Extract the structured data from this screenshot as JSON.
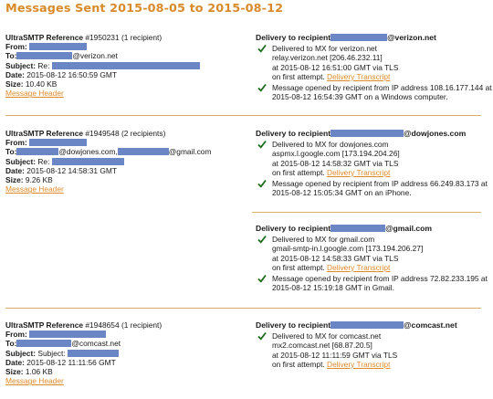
{
  "page_title": "Messages Sent 2015-08-05 to 2015-08-12",
  "labels": {
    "ref_prefix": "UltraSMTP Reference",
    "from": "From:",
    "to": "To:",
    "subject": "Subject:",
    "date": "Date:",
    "size": "Size:",
    "message_header": "Message Header",
    "delivery_to": "Delivery to recipient",
    "delivery_transcript": "Delivery Transcript"
  },
  "messages": [
    {
      "ref_num": "#1950231",
      "recipients": "(1 recipient)",
      "to_suffix": "@verizon.net",
      "subject_prefix": "Re:",
      "date": "2015-08-12 16:50:59 GMT",
      "size": "10.40 KB",
      "deliveries": [
        {
          "domain": "@verizon.net",
          "mx_text": "Delivered to MX for verizon.net",
          "relay": "relay.verizon.net [206.46.232.11]",
          "at_time": "at 2015-08-12 16:51:00 GMT via TLS",
          "first_attempt": "on first attempt.",
          "opened_1": "Message opened by recipient from IP address 108.16.177.144 at",
          "opened_2": "2015-08-12 16:54:39 GMT on a Windows computer."
        }
      ]
    },
    {
      "ref_num": "#1949548",
      "recipients": "(2 recipients)",
      "to_suffix_1": "@dowjones.com,",
      "to_suffix_2": "@gmail.com",
      "subject_prefix": "Re:",
      "date": "2015-08-12 14:58:31 GMT",
      "size": "9.26 KB",
      "deliveries": [
        {
          "domain": "@dowjones.com",
          "mx_text": "Delivered to MX for dowjones.com",
          "relay": "aspmx.l.google.com [173.194.204.26]",
          "at_time": "at 2015-08-12 14:58:32 GMT via TLS",
          "first_attempt": "on first attempt.",
          "opened_1": "Message opened by recipient from IP address 66.249.83.173 at",
          "opened_2": "2015-08-12 15:05:34 GMT on an iPhone."
        },
        {
          "domain": "@gmail.com",
          "mx_text": "Delivered to MX for gmail.com",
          "relay": "gmail-smtp-in.l.google.com [173.194.206.27]",
          "at_time": "at 2015-08-12 14:58:33 GMT via TLS",
          "first_attempt": "on first attempt.",
          "opened_1": "Message opened by recipient from IP address 72.82.233.195 at",
          "opened_2": "2015-08-12 15:19:18 GMT in Gmail."
        }
      ]
    },
    {
      "ref_num": "#1948654",
      "recipients": "(1 recipient)",
      "to_suffix": "@comcast.net",
      "subject_prefix": "Subject:",
      "date": "2015-08-12 11:11:56 GMT",
      "size": "1.06 KB",
      "deliveries": [
        {
          "domain": "@comcast.net",
          "mx_text": "Delivered to MX for comcast.net",
          "relay": "mx2.comcast.net [68.87.20.5]",
          "at_time": "at 2015-08-12 11:11:59 GMT via TLS",
          "first_attempt": "on first attempt."
        }
      ]
    }
  ],
  "colors": {
    "title": "#d98a2b",
    "link": "#e08a2a",
    "redaction": "#6a86c4",
    "divider": "#d8b066",
    "check": "#1a6b1a"
  },
  "icons": {
    "check": "check-icon"
  }
}
